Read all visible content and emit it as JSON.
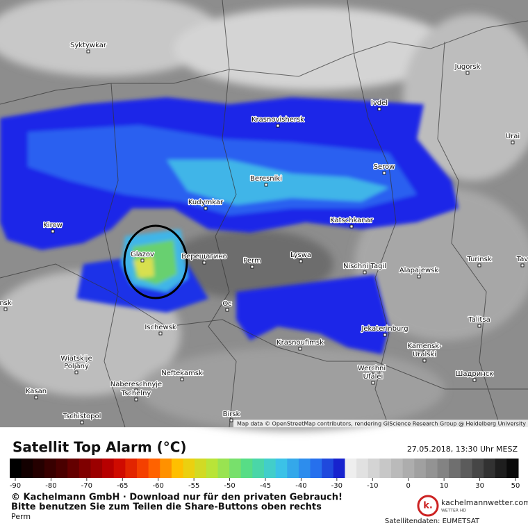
{
  "map": {
    "attribution": "Map data © OpenStreetMap contributors, rendering GIScience Research Group @ Heidelberg University",
    "places": [
      "Syktywkar",
      "Jugorsk",
      "Ivdel",
      "Krasnovishersk",
      "Urai",
      "Serow",
      "Beresniki",
      "Kudymkar",
      "Kirow",
      "Katschkanar",
      "Glazov",
      "Верещагино",
      "Perm",
      "Lyswa",
      "Nischni Tagil",
      "Alapajewsk",
      "Turinsk",
      "Tav",
      "Oc",
      "nsk",
      "Ischewsk",
      "Krasnoufimsk",
      "Jekaterinburg",
      "Talitsa",
      "Kamensk-",
      "Uralski",
      "Wiatskije",
      "Poljany",
      "Neftekamsk",
      "Werchni",
      "Ufalei",
      "Шадринск",
      "Nabereschnyje",
      "Tschelny",
      "Kasan",
      "Tschistopol",
      "Birsk"
    ]
  },
  "legend": {
    "title": "Satellit Top Alarm (°C)",
    "timestamp": "27.05.2018, 13:30 Uhr MESZ",
    "ticks": [
      -90,
      -80,
      -70,
      -65,
      -60,
      -55,
      -50,
      -45,
      -40,
      -30,
      -10,
      0,
      10,
      30,
      50
    ]
  },
  "footer": {
    "copyright": "© Kachelmann GmbH · Download nur für den privaten Gebrauch!",
    "share_note": "Bitte benutzen Sie zum Teilen die Share-Buttons oben rechts",
    "location": "Perm",
    "brand": "kachelmannwetter.com",
    "brand_sub": "WETTER HD",
    "data_source": "Satellitendaten: EUMETSAT"
  }
}
